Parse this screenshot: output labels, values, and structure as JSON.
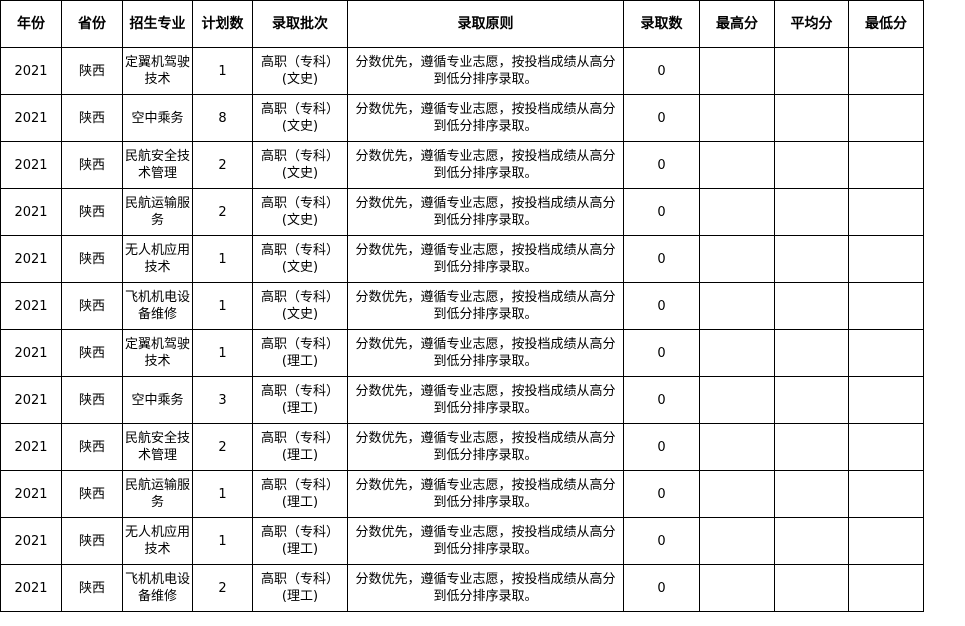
{
  "headers": [
    "年份",
    "省份",
    "招生专业",
    "计划数",
    "录取批次",
    "录取原则",
    "录取数",
    "最高分",
    "平均分",
    "最低分"
  ],
  "rows": [
    [
      "2021",
      "陕西",
      "定翼机驾驶技术",
      "1",
      "高职（专科）(文史)",
      "分数优先，遵循专业志愿，按投档成绩从高分到低分排序录取。",
      "0",
      "",
      "",
      ""
    ],
    [
      "2021",
      "陕西",
      "空中乘务",
      "8",
      "高职（专科）(文史)",
      "分数优先，遵循专业志愿，按投档成绩从高分到低分排序录取。",
      "0",
      "",
      "",
      ""
    ],
    [
      "2021",
      "陕西",
      "民航安全技术管理",
      "2",
      "高职（专科）(文史)",
      "分数优先，遵循专业志愿，按投档成绩从高分到低分排序录取。",
      "0",
      "",
      "",
      ""
    ],
    [
      "2021",
      "陕西",
      "民航运输服务",
      "2",
      "高职（专科）(文史)",
      "分数优先，遵循专业志愿，按投档成绩从高分到低分排序录取。",
      "0",
      "",
      "",
      ""
    ],
    [
      "2021",
      "陕西",
      "无人机应用技术",
      "1",
      "高职（专科）(文史)",
      "分数优先，遵循专业志愿，按投档成绩从高分到低分排序录取。",
      "0",
      "",
      "",
      ""
    ],
    [
      "2021",
      "陕西",
      "飞机机电设备维修",
      "1",
      "高职（专科）(文史)",
      "分数优先，遵循专业志愿，按投档成绩从高分到低分排序录取。",
      "0",
      "",
      "",
      ""
    ],
    [
      "2021",
      "陕西",
      "定翼机驾驶技术",
      "1",
      "高职（专科）(理工)",
      "分数优先，遵循专业志愿，按投档成绩从高分到低分排序录取。",
      "0",
      "",
      "",
      ""
    ],
    [
      "2021",
      "陕西",
      "空中乘务",
      "3",
      "高职（专科）(理工)",
      "分数优先，遵循专业志愿，按投档成绩从高分到低分排序录取。",
      "0",
      "",
      "",
      ""
    ],
    [
      "2021",
      "陕西",
      "民航安全技术管理",
      "2",
      "高职（专科）(理工)",
      "分数优先，遵循专业志愿，按投档成绩从高分到低分排序录取。",
      "0",
      "",
      "",
      ""
    ],
    [
      "2021",
      "陕西",
      "民航运输服务",
      "1",
      "高职（专科）(理工)",
      "分数优先，遵循专业志愿，按投档成绩从高分到低分排序录取。",
      "0",
      "",
      "",
      ""
    ],
    [
      "2021",
      "陕西",
      "无人机应用技术",
      "1",
      "高职（专科）(理工)",
      "分数优先，遵循专业志愿，按投档成绩从高分到低分排序录取。",
      "0",
      "",
      "",
      ""
    ],
    [
      "2021",
      "陕西",
      "飞机机电设备维修",
      "2",
      "高职（专科）(理工)",
      "分数优先，遵循专业志愿，按投档成绩从高分到低分排序录取。",
      "0",
      "",
      "",
      ""
    ]
  ]
}
